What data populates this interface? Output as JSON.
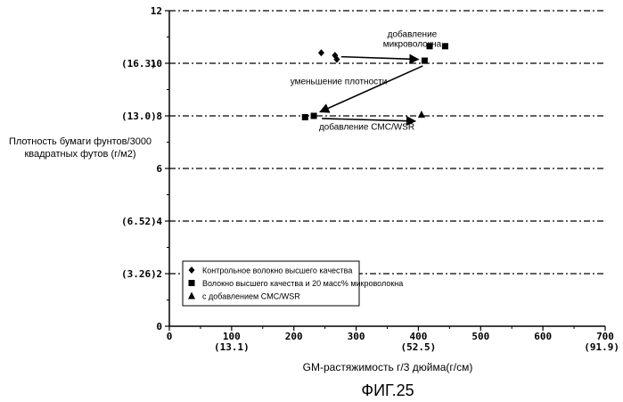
{
  "chart_data": {
    "type": "scatter",
    "figure_label": "ФИГ.25",
    "xlabel": "GM-растяжимость г/3 дюйма(г/см)",
    "ylabel": "Плотность бумаги фунтов/3000 квадратных футов (г/м2)",
    "xlim": [
      0,
      700
    ],
    "ylim": [
      0,
      12
    ],
    "x_ticks": [
      0,
      100,
      200,
      300,
      400,
      500,
      600,
      700
    ],
    "y_ticks": [
      0,
      2,
      4,
      6,
      8,
      10,
      12
    ],
    "x_alt_ticks": [
      {
        "x": 100,
        "label": "(13.1)"
      },
      {
        "x": 400,
        "label": "(52.5)"
      },
      {
        "x": 700,
        "label": "(91.9)"
      }
    ],
    "y_alt_ticks": [
      {
        "y": 10,
        "label": "(16.3)"
      },
      {
        "y": 8,
        "label": "(13.0)"
      },
      {
        "y": 4,
        "label": "(6.52)"
      },
      {
        "y": 2,
        "label": "(3.26)"
      }
    ],
    "grid": "horizontal-dashed",
    "legend_position": "bottom-left",
    "series": [
      {
        "name": "Контрольное волокно высшего качества",
        "marker": "diamond",
        "points": [
          [
            244,
            10.4
          ],
          [
            266,
            10.3
          ],
          [
            269,
            10.15
          ]
        ]
      },
      {
        "name": "Волокно высшего качества и 20 масс% микроволокна",
        "marker": "square",
        "points": [
          [
            418,
            10.65
          ],
          [
            443,
            10.65
          ],
          [
            410,
            10.1
          ],
          [
            218,
            7.95
          ],
          [
            232,
            8.0
          ]
        ]
      },
      {
        "name": "с добавлением CMC/WSR",
        "marker": "triangle",
        "points": [
          [
            405,
            8.05
          ]
        ]
      }
    ],
    "annotations": [
      {
        "text": "добавление",
        "x": 390,
        "y": 11.0
      },
      {
        "text": "микроволокна",
        "x": 390,
        "y": 10.62
      },
      {
        "text": "уменьшение плотности",
        "x": 272,
        "y": 9.2
      },
      {
        "text": "добавление CMC/WSR",
        "x": 317,
        "y": 7.48
      }
    ],
    "arrows": [
      {
        "from": [
          276,
          10.25
        ],
        "to": [
          400,
          10.15
        ]
      },
      {
        "from": [
          407,
          9.9
        ],
        "to": [
          242,
          8.15
        ]
      },
      {
        "from": [
          245,
          7.9
        ],
        "to": [
          395,
          7.8
        ]
      }
    ]
  }
}
